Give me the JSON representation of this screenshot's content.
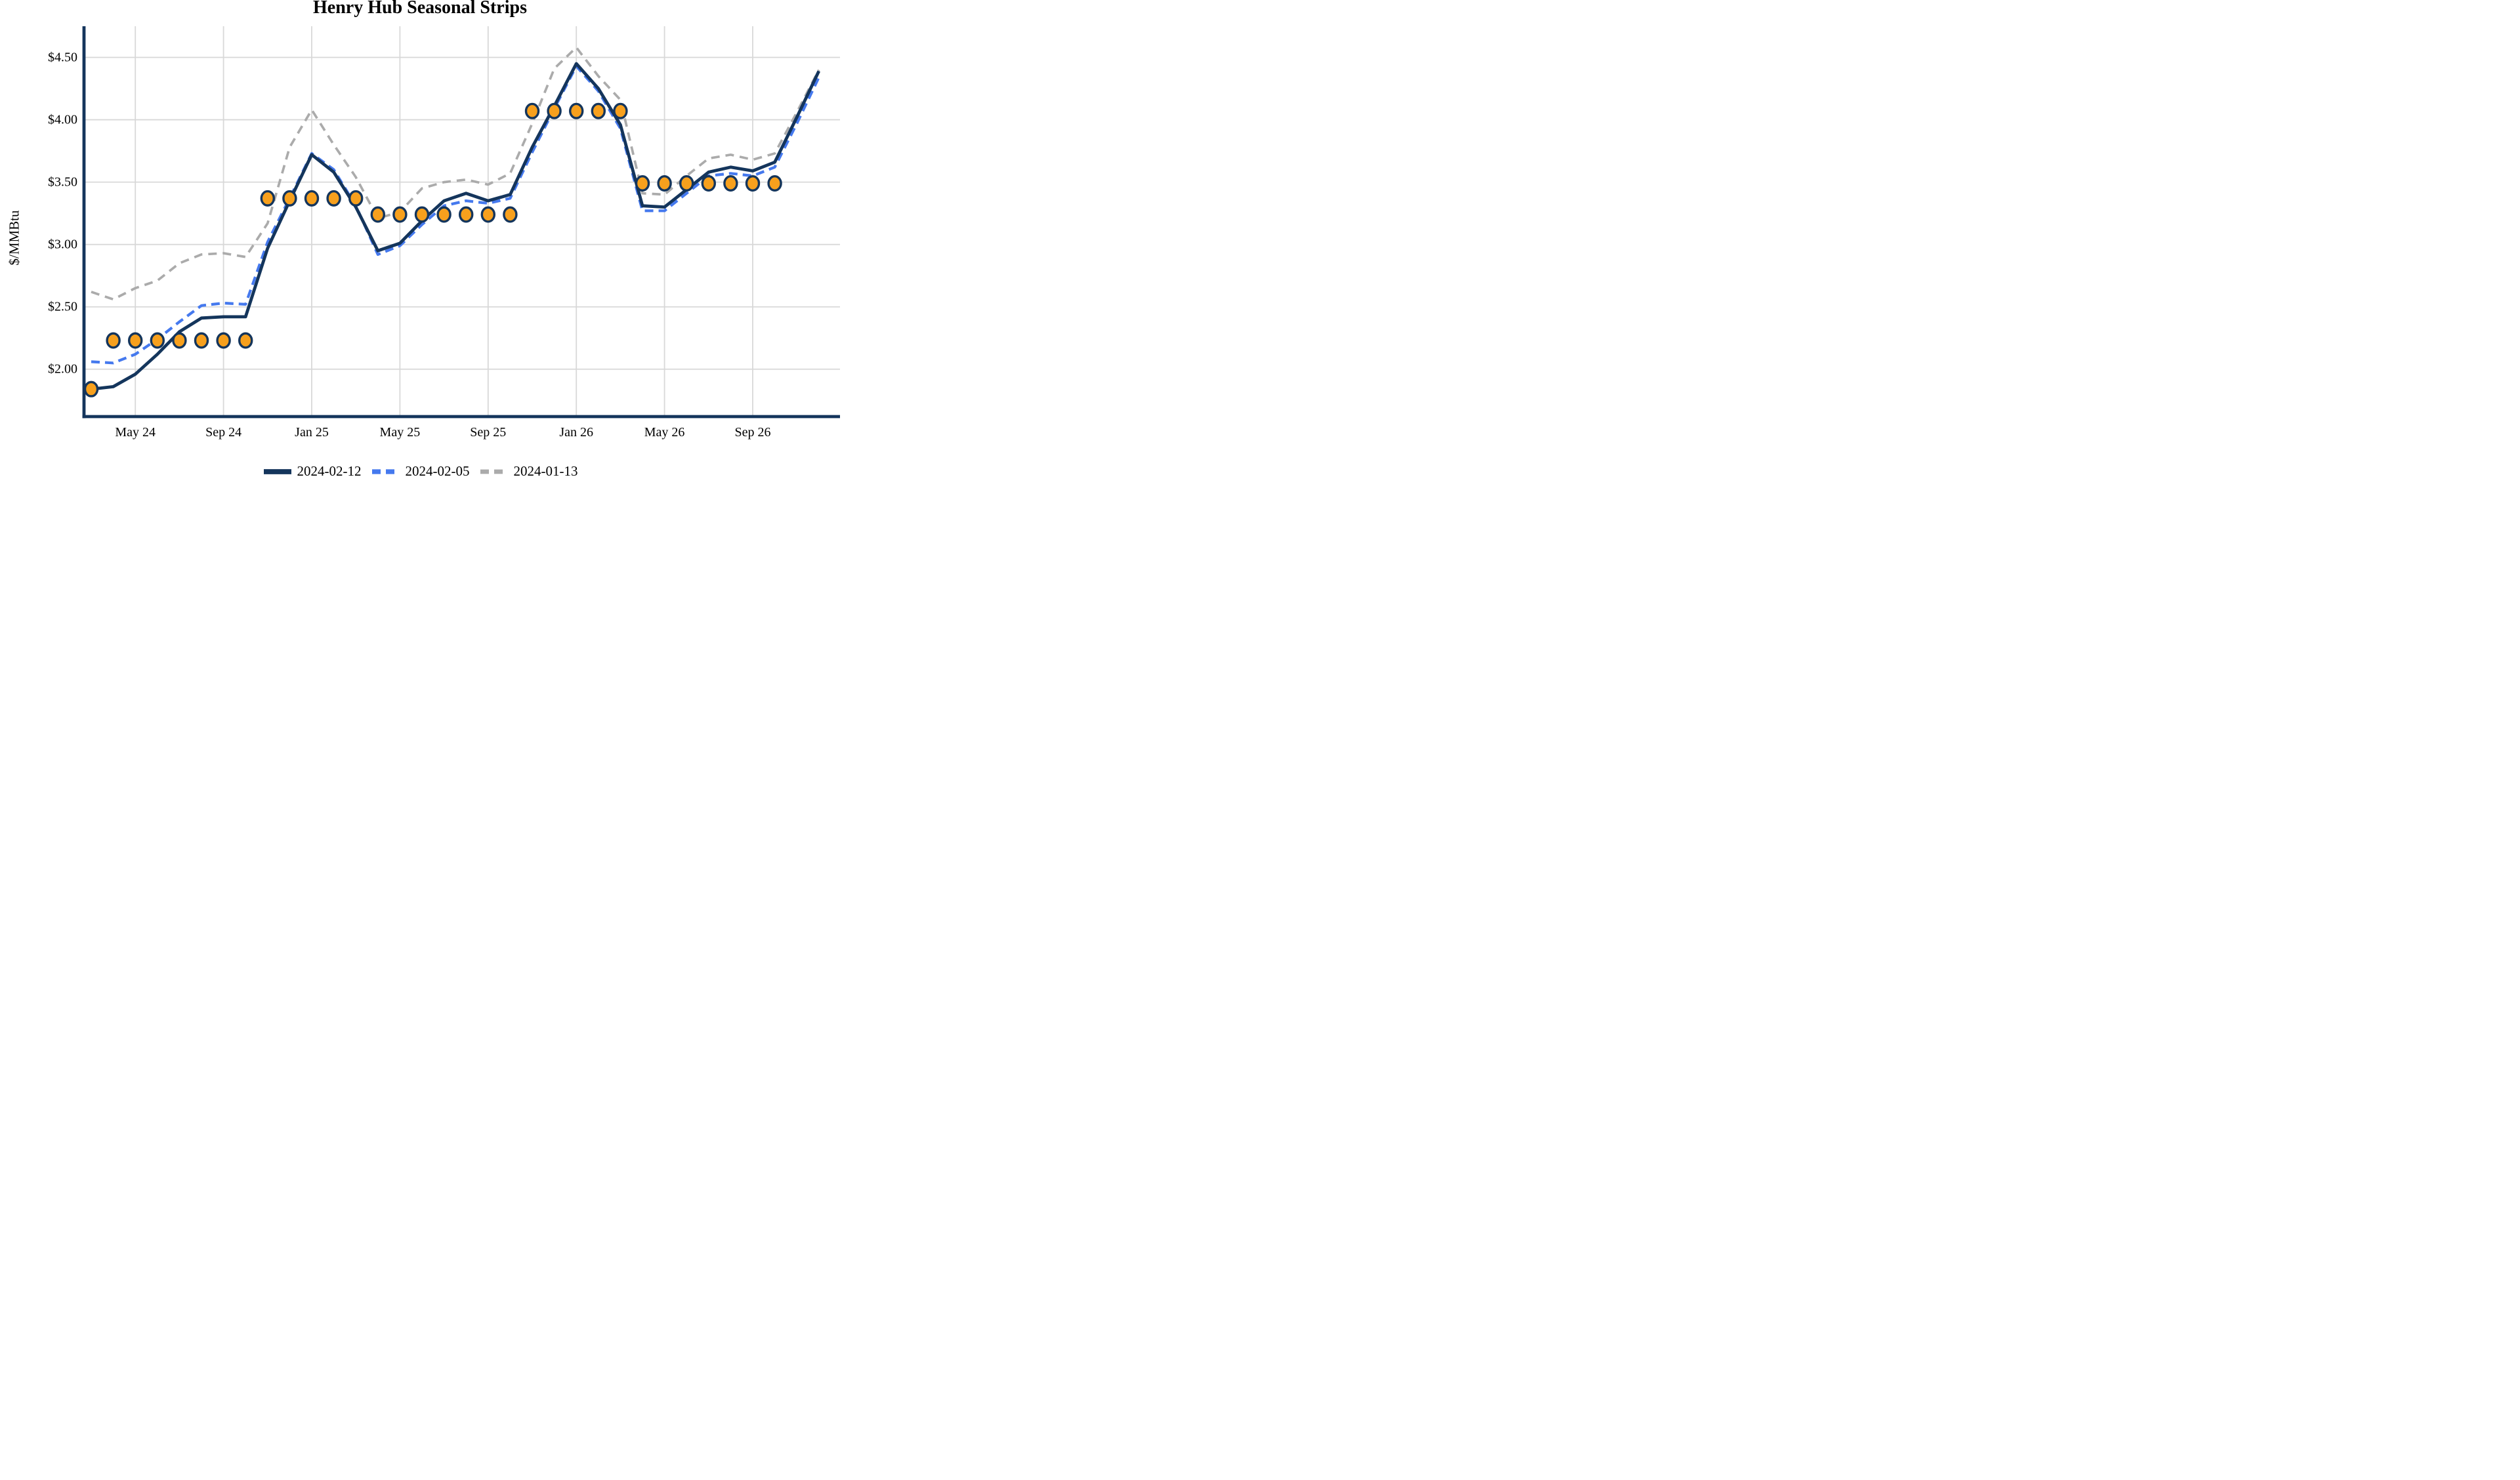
{
  "chart_data": {
    "type": "line",
    "title": "Henry Hub Seasonal Strips",
    "ylabel": "$/MMBtu",
    "xlabel": "",
    "grid": true,
    "legend_position": "bottom",
    "ylim": [
      1.62,
      4.75
    ],
    "categories": [
      "Mar 2024",
      "Apr 2024",
      "May 2024",
      "Jun 2024",
      "Jul 2024",
      "Aug 2024",
      "Sep 2024",
      "Oct 2024",
      "Nov 2024",
      "Dec 2024",
      "Jan 2025",
      "Feb 2025",
      "Mar 2025",
      "Apr 2025",
      "May 2025",
      "Jun 2025",
      "Jul 2025",
      "Aug 2025",
      "Sep 2025",
      "Oct 2025",
      "Nov 2025",
      "Dec 2025",
      "Jan 2026",
      "Feb 2026",
      "Mar 2026",
      "Apr 2026",
      "May 2026",
      "Jun 2026",
      "Jul 2026",
      "Aug 2026",
      "Sep 2026",
      "Oct 2026",
      "Nov 2026",
      "Dec 2026"
    ],
    "series": [
      {
        "name": "2024-02-12",
        "color": "#14355c",
        "style": "solid",
        "width": 4.8,
        "dash": null,
        "values": [
          1.84,
          1.86,
          1.96,
          2.12,
          2.3,
          2.41,
          2.42,
          2.42,
          2.97,
          3.35,
          3.72,
          3.58,
          3.3,
          2.95,
          3.01,
          3.19,
          3.35,
          3.41,
          3.35,
          3.4,
          3.78,
          4.11,
          4.45,
          4.25,
          3.96,
          3.31,
          3.3,
          3.44,
          3.58,
          3.62,
          3.59,
          3.66,
          4.02,
          4.39
        ]
      },
      {
        "name": "2024-02-05",
        "color": "#4579ee",
        "style": "dashed",
        "width": 4.2,
        "dash": [
          13,
          8
        ],
        "values": [
          2.06,
          2.05,
          2.12,
          2.24,
          2.38,
          2.51,
          2.53,
          2.52,
          3.02,
          3.37,
          3.73,
          3.6,
          3.31,
          2.92,
          2.99,
          3.16,
          3.31,
          3.35,
          3.33,
          3.37,
          3.74,
          4.09,
          4.43,
          4.23,
          3.93,
          3.27,
          3.27,
          3.41,
          3.55,
          3.57,
          3.55,
          3.62,
          3.97,
          4.34
        ]
      },
      {
        "name": "2024-01-13",
        "color": "#ababab",
        "style": "dashed",
        "width": 3.7,
        "dash": [
          13,
          9
        ],
        "values": [
          2.62,
          2.56,
          2.65,
          2.71,
          2.85,
          2.92,
          2.93,
          2.9,
          3.17,
          3.78,
          4.08,
          3.8,
          3.54,
          3.21,
          3.26,
          3.45,
          3.5,
          3.52,
          3.48,
          3.57,
          3.97,
          4.41,
          4.58,
          4.35,
          4.16,
          3.41,
          3.4,
          3.55,
          3.69,
          3.72,
          3.68,
          3.73,
          4.06,
          4.4
        ]
      }
    ],
    "markers": {
      "shape": "circle",
      "fill": "#f7a01d",
      "edge": "#14355c",
      "strips": [
        {
          "from": 0,
          "to": 0,
          "value": 1.84
        },
        {
          "from": 1,
          "to": 7,
          "value": 2.23
        },
        {
          "from": 8,
          "to": 12,
          "value": 3.37
        },
        {
          "from": 13,
          "to": 19,
          "value": 3.24
        },
        {
          "from": 20,
          "to": 24,
          "value": 4.07
        },
        {
          "from": 25,
          "to": 31,
          "value": 3.49
        }
      ]
    },
    "x_ticks": [
      {
        "m": 2,
        "label": "May 24"
      },
      {
        "m": 6,
        "label": "Sep 24"
      },
      {
        "m": 10,
        "label": "Jan 25"
      },
      {
        "m": 14,
        "label": "May 25"
      },
      {
        "m": 18,
        "label": "Sep 25"
      },
      {
        "m": 22,
        "label": "Jan 26"
      },
      {
        "m": 26,
        "label": "May 26"
      },
      {
        "m": 30,
        "label": "Sep 26"
      }
    ],
    "y_ticks": [
      {
        "v": 2.0,
        "label": "$2.00"
      },
      {
        "v": 2.5,
        "label": "$2.50"
      },
      {
        "v": 3.0,
        "label": "$3.00"
      },
      {
        "v": 3.5,
        "label": "$3.50"
      },
      {
        "v": 4.0,
        "label": "$4.00"
      },
      {
        "v": 4.5,
        "label": "$4.50"
      }
    ],
    "colors": {
      "gridline": "#d8d8d8",
      "spine": "#14355c",
      "background": "#ffffff",
      "text": "#000000"
    }
  }
}
